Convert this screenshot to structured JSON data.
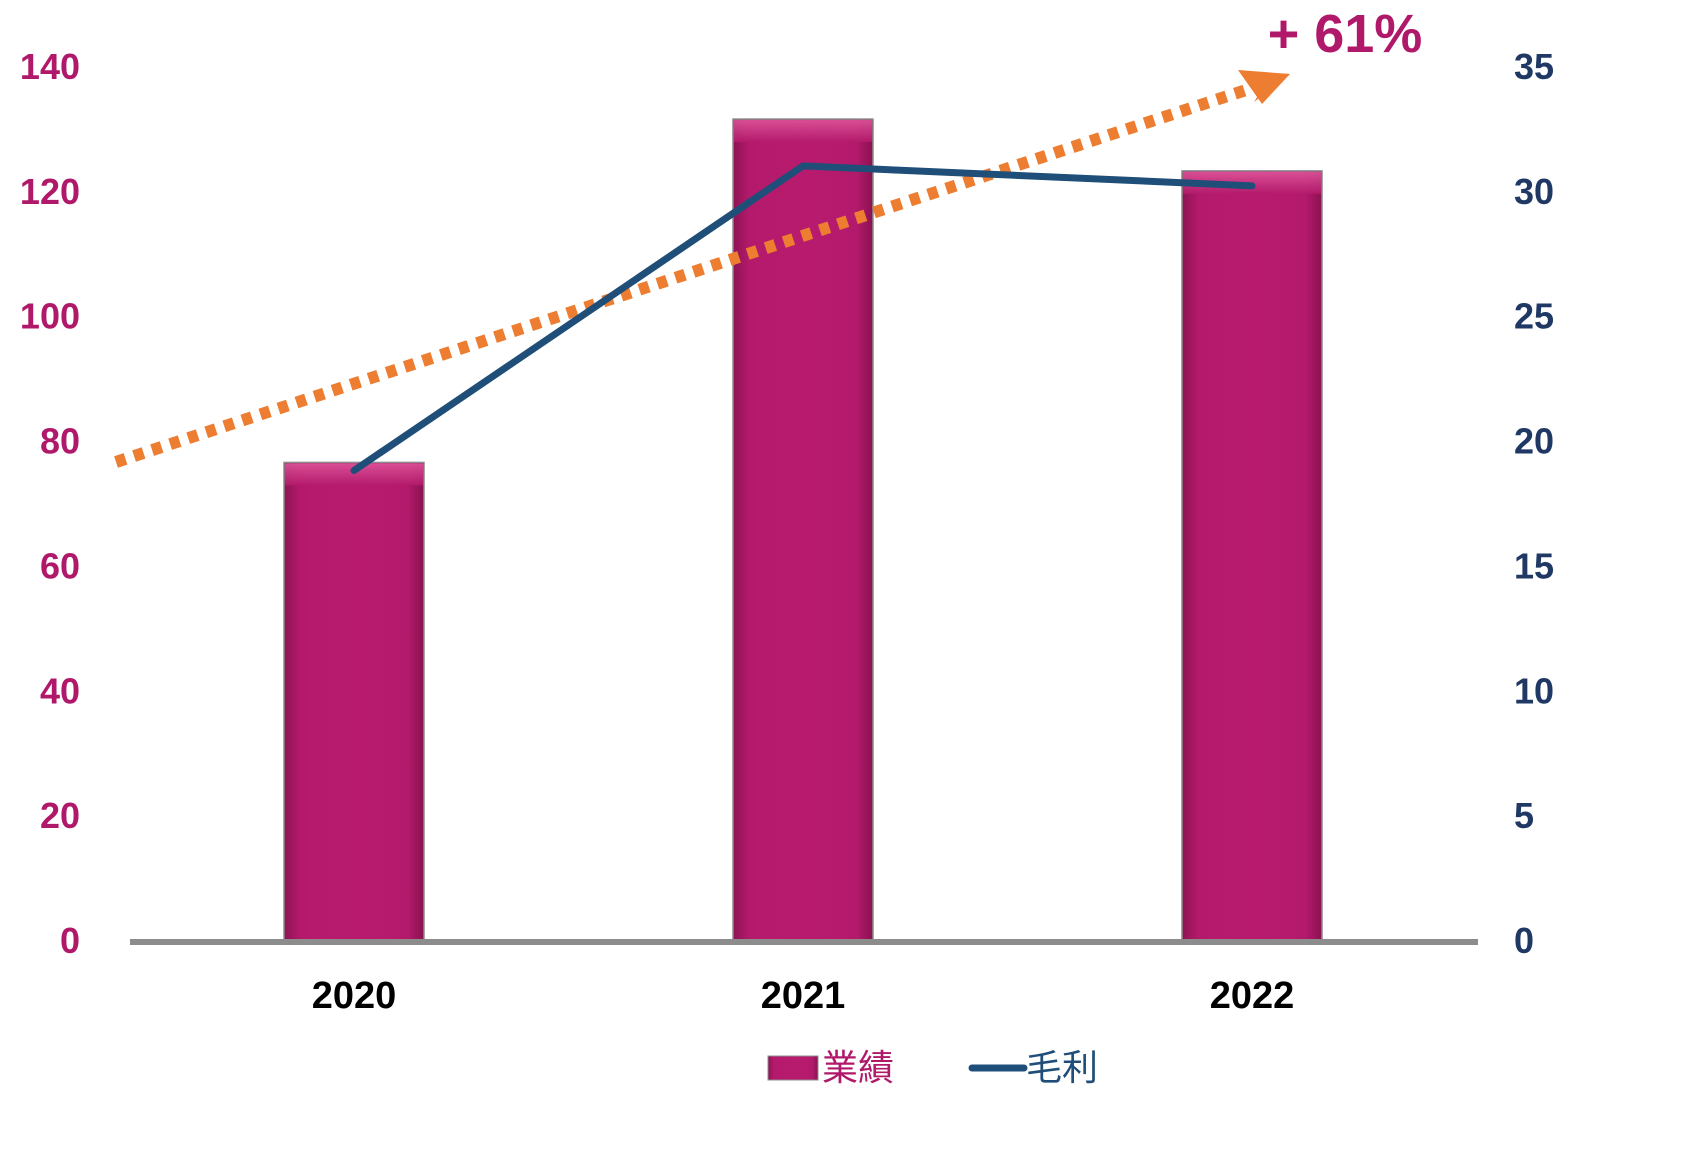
{
  "chart_data": {
    "type": "bar",
    "categories": [
      "2020",
      "2021",
      "2022"
    ],
    "series": [
      {
        "name": "業績",
        "chart_type": "bar",
        "axis": "left",
        "values": [
          76.5,
          131.5,
          123.2
        ],
        "color": "#b0196a"
      },
      {
        "name": "毛利",
        "chart_type": "line",
        "axis": "right",
        "values": [
          18.8,
          31,
          30.2
        ],
        "color": "#1f4e79"
      }
    ],
    "left_axis": {
      "ylim": [
        0,
        140
      ],
      "ticks": [
        "0",
        "20",
        "40",
        "60",
        "80",
        "100",
        "120",
        "140"
      ],
      "color": "#b0196a"
    },
    "right_axis": {
      "ylim": [
        0,
        35
      ],
      "ticks": [
        "0",
        "5",
        "10",
        "15",
        "20",
        "25",
        "30",
        "35"
      ],
      "color": "#1f3864"
    },
    "trend_annotation": {
      "label": "+ 61%",
      "color": "#ed7d31",
      "label_color": "#b0196a"
    },
    "legend": {
      "position": "bottom",
      "items": [
        "業績",
        "毛利"
      ]
    },
    "grid": false,
    "axis_line_color": "#8c8c8c"
  }
}
